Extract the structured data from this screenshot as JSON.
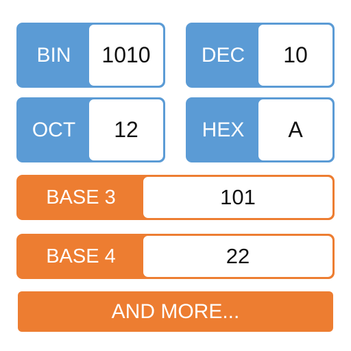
{
  "colors": {
    "blue_accent": "#5b9bd5",
    "orange_accent": "#ed7d31"
  },
  "converters": [
    {
      "label": "BIN",
      "value": "1010"
    },
    {
      "label": "DEC",
      "value": "10"
    },
    {
      "label": "OCT",
      "value": "12"
    },
    {
      "label": "HEX",
      "value": "A"
    },
    {
      "label": "BASE 3",
      "value": "101"
    },
    {
      "label": "BASE 4",
      "value": "22"
    }
  ],
  "more_button": {
    "label": "AND MORE..."
  }
}
